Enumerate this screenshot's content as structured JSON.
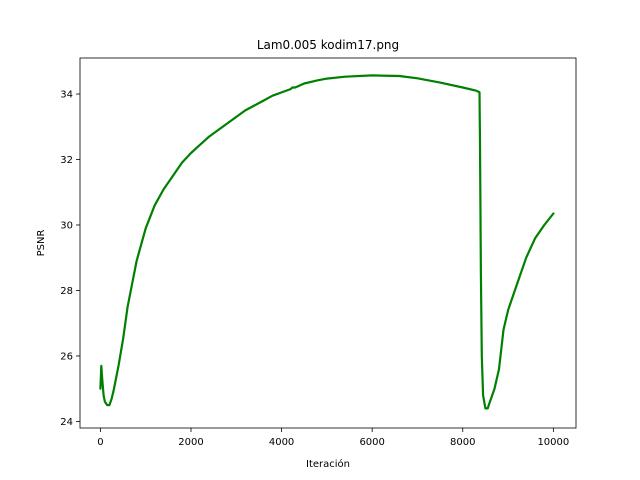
{
  "chart_data": {
    "type": "line",
    "title": "Lam0.005 kodim17.png",
    "xlabel": "Iteración",
    "ylabel": "PSNR",
    "xlim": [
      -450,
      10500
    ],
    "ylim": [
      23.8,
      35.1
    ],
    "xticks": [
      0,
      2000,
      4000,
      6000,
      8000,
      10000
    ],
    "yticks": [
      24,
      26,
      28,
      30,
      32,
      34
    ],
    "grid": false,
    "series": [
      {
        "color": "#008000",
        "x": [
          0,
          20,
          40,
          70,
          100,
          150,
          200,
          250,
          300,
          400,
          500,
          600,
          700,
          800,
          1000,
          1200,
          1400,
          1600,
          1800,
          2000,
          2200,
          2400,
          2600,
          2800,
          3000,
          3200,
          3400,
          3600,
          3800,
          4000,
          4200,
          4240,
          4300,
          4500,
          4800,
          5000,
          5400,
          6000,
          6600,
          7000,
          7500,
          8000,
          8300,
          8370,
          8380,
          8400,
          8420,
          8450,
          8500,
          8550,
          8600,
          8700,
          8800,
          8900,
          9000,
          9200,
          9400,
          9600,
          9800,
          10000
        ],
        "y": [
          25.0,
          25.7,
          25.3,
          24.8,
          24.6,
          24.5,
          24.5,
          24.7,
          25.0,
          25.7,
          26.5,
          27.5,
          28.2,
          28.9,
          29.9,
          30.6,
          31.1,
          31.5,
          31.9,
          32.2,
          32.45,
          32.7,
          32.9,
          33.1,
          33.3,
          33.5,
          33.65,
          33.8,
          33.95,
          34.05,
          34.15,
          34.2,
          34.2,
          34.32,
          34.42,
          34.47,
          34.53,
          34.57,
          34.55,
          34.48,
          34.35,
          34.2,
          34.1,
          34.05,
          32.5,
          28.5,
          26.0,
          24.8,
          24.4,
          24.4,
          24.6,
          25.0,
          25.6,
          26.8,
          27.4,
          28.2,
          29.0,
          29.6,
          30.0,
          30.35
        ]
      }
    ]
  }
}
